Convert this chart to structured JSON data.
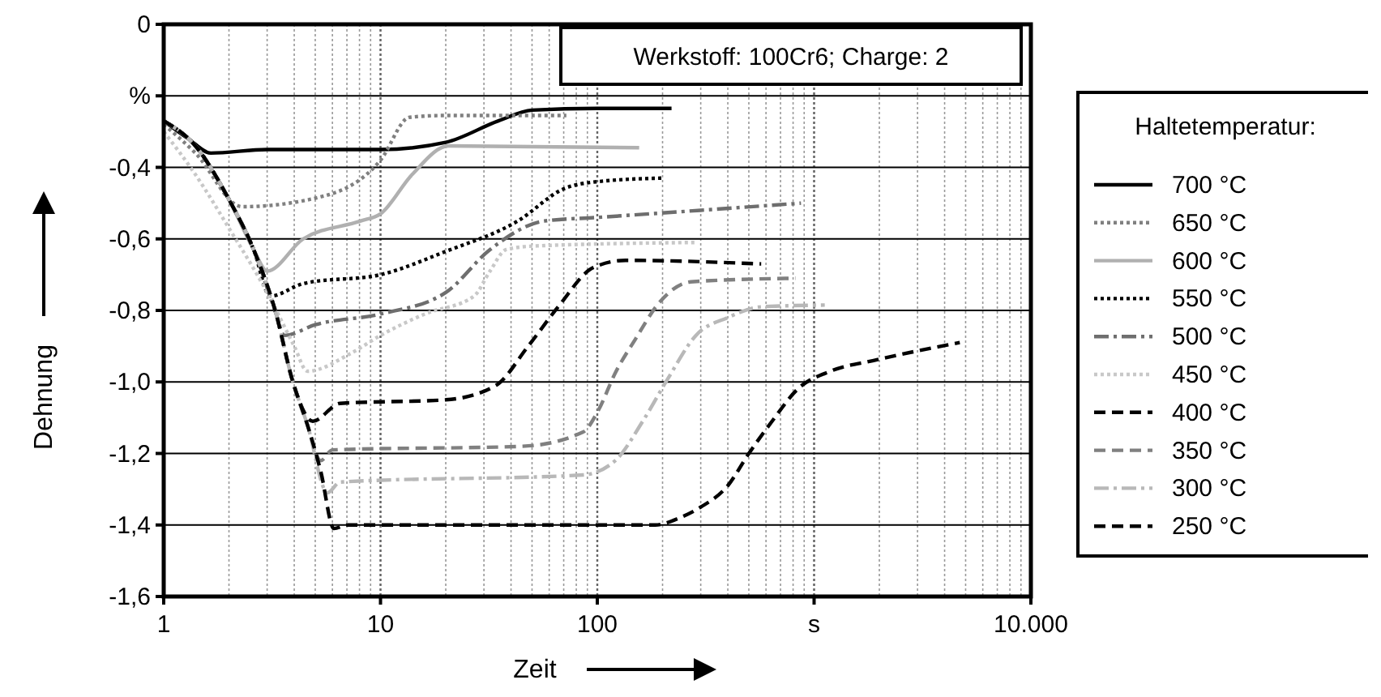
{
  "chart_data": {
    "type": "line",
    "xlabel": "Zeit",
    "ylabel": "Dehnung",
    "legend_title": "Haltetemperatur:",
    "legend": "right",
    "grid": true,
    "log": "x",
    "annotations": [
      "Werkstoff: 100Cr6; Charge: 2"
    ],
    "xlim": [
      1,
      10000
    ],
    "xticks": [
      1,
      10,
      100,
      {
        "value": 1000,
        "label": "s"
      },
      {
        "value": 10000,
        "label": "10.000"
      }
    ],
    "ylim": [
      -1.6,
      0
    ],
    "yticks": [
      {
        "value": -1.6,
        "label": "-1,6"
      },
      {
        "value": -1.4,
        "label": "-1,4"
      },
      {
        "value": -1.2,
        "label": "-1,2"
      },
      {
        "value": -1.0,
        "label": "-1,0"
      },
      {
        "value": -0.8,
        "label": "-0,8"
      },
      {
        "value": -0.6,
        "label": "-0,6"
      },
      {
        "value": -0.4,
        "label": "-0,4"
      },
      {
        "value": -0.2,
        "label": "%"
      },
      0
    ],
    "series": [
      {
        "name": "700 °C",
        "color": "#000000",
        "line_style": "solid",
        "x": [
          1,
          1.3,
          1.65,
          3,
          10,
          20,
          35,
          50,
          100,
          220
        ],
        "values": [
          -0.27,
          -0.32,
          -0.36,
          -0.35,
          -0.35,
          -0.33,
          -0.27,
          -0.24,
          -0.235,
          -0.235
        ]
      },
      {
        "name": "650 °C",
        "color": "#808080",
        "line_style": "dotted",
        "x": [
          1,
          1.4,
          2.3,
          5.5,
          10,
          13.6,
          20,
          72
        ],
        "values": [
          -0.28,
          -0.36,
          -0.51,
          -0.48,
          -0.38,
          -0.26,
          -0.255,
          -0.255
        ]
      },
      {
        "name": "600 °C",
        "color": "#b0b0b0",
        "line_style": "solid",
        "x": [
          1,
          1.4,
          2,
          2.6,
          3,
          4.4,
          8.1,
          10,
          14,
          20.6,
          156
        ],
        "values": [
          -0.27,
          -0.34,
          -0.49,
          -0.63,
          -0.69,
          -0.6,
          -0.55,
          -0.53,
          -0.42,
          -0.34,
          -0.345
        ]
      },
      {
        "name": "550 °C",
        "color": "#000000",
        "line_style": "dotted",
        "x": [
          1,
          1.4,
          2,
          2.6,
          3.1,
          4.4,
          10,
          20,
          43,
          70,
          100,
          200
        ],
        "values": [
          -0.27,
          -0.34,
          -0.49,
          -0.63,
          -0.76,
          -0.725,
          -0.7,
          -0.635,
          -0.55,
          -0.46,
          -0.44,
          -0.43
        ]
      },
      {
        "name": "500 °C",
        "color": "#6e6e6e",
        "line_style": "dashdot",
        "x": [
          1,
          1.4,
          2,
          2.6,
          3.3,
          3.6,
          5,
          10,
          20,
          32,
          57,
          100,
          300,
          870
        ],
        "values": [
          -0.27,
          -0.34,
          -0.49,
          -0.63,
          -0.81,
          -0.87,
          -0.84,
          -0.81,
          -0.75,
          -0.63,
          -0.55,
          -0.54,
          -0.52,
          -0.5
        ]
      },
      {
        "name": "450 °C",
        "color": "#c8c8c8",
        "line_style": "dotted",
        "x": [
          1,
          1.4,
          2,
          3,
          4,
          4.6,
          7.3,
          10,
          16,
          27,
          32,
          38,
          51,
          285
        ],
        "values": [
          -0.3,
          -0.42,
          -0.57,
          -0.75,
          -0.9,
          -0.97,
          -0.92,
          -0.87,
          -0.81,
          -0.76,
          -0.69,
          -0.63,
          -0.62,
          -0.61
        ]
      },
      {
        "name": "400 °C",
        "color": "#000000",
        "line_style": "dashed",
        "x": [
          1,
          1.4,
          2,
          2.6,
          3.3,
          3.9,
          4.87,
          6.5,
          20,
          34,
          48,
          66,
          96,
          135,
          570
        ],
        "values": [
          -0.27,
          -0.34,
          -0.49,
          -0.63,
          -0.81,
          -0.99,
          -1.11,
          -1.06,
          -1.05,
          -1.01,
          -0.9,
          -0.79,
          -0.68,
          -0.66,
          -0.67
        ]
      },
      {
        "name": "350 °C",
        "color": "#808080",
        "line_style": "dashed",
        "x": [
          1,
          1.4,
          2,
          2.6,
          3.3,
          3.9,
          4.6,
          5.3,
          6,
          45,
          86,
          101,
          121,
          150,
          192,
          270,
          820
        ],
        "values": [
          -0.27,
          -0.34,
          -0.49,
          -0.63,
          -0.81,
          -0.99,
          -1.12,
          -1.22,
          -1.19,
          -1.18,
          -1.14,
          -1.08,
          -0.975,
          -0.88,
          -0.78,
          -0.72,
          -0.71
        ]
      },
      {
        "name": "300 °C",
        "color": "#b8b8b8",
        "line_style": "dashdot",
        "x": [
          1,
          1.4,
          2,
          2.6,
          3.3,
          3.9,
          4.6,
          5.7,
          6.5,
          86,
          121,
          162,
          212,
          285,
          400,
          570,
          1120
        ],
        "values": [
          -0.27,
          -0.34,
          -0.49,
          -0.63,
          -0.81,
          -0.99,
          -1.12,
          -1.31,
          -1.28,
          -1.26,
          -1.22,
          -1.11,
          -0.99,
          -0.87,
          -0.82,
          -0.79,
          -0.785
        ]
      },
      {
        "name": "250 °C",
        "color": "#000000",
        "line_style": "dashed",
        "x": [
          1,
          1.4,
          2,
          2.6,
          3.3,
          3.9,
          4.6,
          5.3,
          6.1,
          7,
          185,
          240,
          300,
          400,
          500,
          640,
          840,
          1190,
          1880,
          4700
        ],
        "values": [
          -0.27,
          -0.34,
          -0.49,
          -0.63,
          -0.81,
          -0.99,
          -1.12,
          -1.25,
          -1.41,
          -1.4,
          -1.4,
          -1.38,
          -1.35,
          -1.29,
          -1.2,
          -1.11,
          -1.02,
          -0.97,
          -0.94,
          -0.89
        ]
      }
    ]
  }
}
